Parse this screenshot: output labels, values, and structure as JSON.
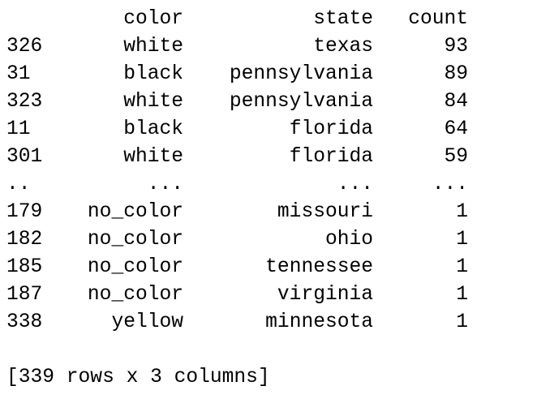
{
  "dataframe": {
    "columns": [
      "color",
      "state",
      "count"
    ],
    "rows": [
      {
        "index": "326",
        "color": "white",
        "state": "texas",
        "count": "93"
      },
      {
        "index": "31",
        "color": "black",
        "state": "pennsylvania",
        "count": "89"
      },
      {
        "index": "323",
        "color": "white",
        "state": "pennsylvania",
        "count": "84"
      },
      {
        "index": "11",
        "color": "black",
        "state": "florida",
        "count": "64"
      },
      {
        "index": "301",
        "color": "white",
        "state": "florida",
        "count": "59"
      },
      {
        "index": "..",
        "color": "...",
        "state": "...",
        "count": "..."
      },
      {
        "index": "179",
        "color": "no_color",
        "state": "missouri",
        "count": "1"
      },
      {
        "index": "182",
        "color": "no_color",
        "state": "ohio",
        "count": "1"
      },
      {
        "index": "185",
        "color": "no_color",
        "state": "tennessee",
        "count": "1"
      },
      {
        "index": "187",
        "color": "no_color",
        "state": "virginia",
        "count": "1"
      },
      {
        "index": "338",
        "color": "yellow",
        "state": "minnesota",
        "count": "1"
      }
    ],
    "footer": "[339 rows x 3 columns]"
  }
}
